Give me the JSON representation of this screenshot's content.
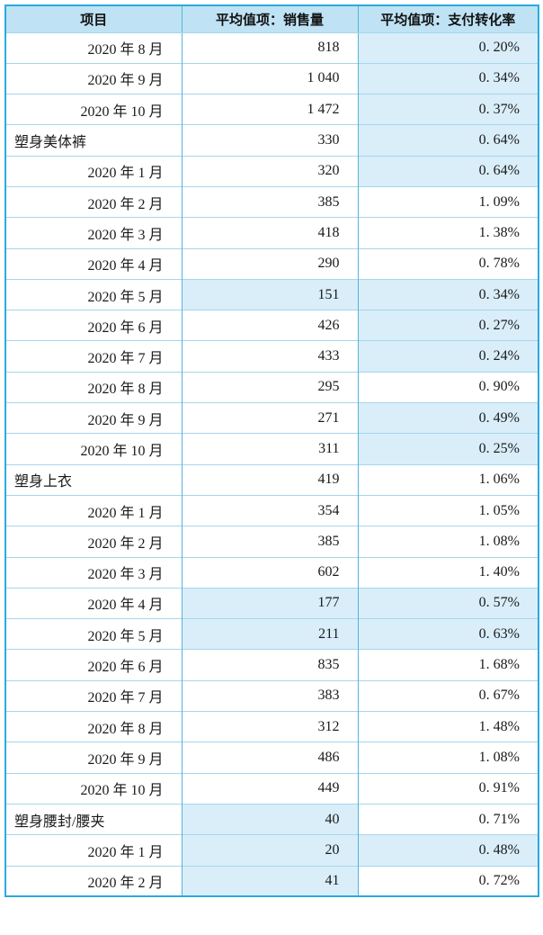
{
  "table": {
    "columns": [
      {
        "label": "项目"
      },
      {
        "label": "平均值项：销售量"
      },
      {
        "label": "平均值项：支付转化率"
      }
    ],
    "rows": [
      {
        "type": "month",
        "label": "2020 年 8 月",
        "sales": "818",
        "conversion": "0. 20%",
        "sales_highlight": false,
        "conversion_highlight": true
      },
      {
        "type": "month",
        "label": "2020 年 9 月",
        "sales": "1 040",
        "conversion": "0. 34%",
        "sales_highlight": false,
        "conversion_highlight": true
      },
      {
        "type": "month",
        "label": "2020 年 10 月",
        "sales": "1 472",
        "conversion": "0. 37%",
        "sales_highlight": false,
        "conversion_highlight": true
      },
      {
        "type": "group",
        "label": "塑身美体裤",
        "sales": "330",
        "conversion": "0. 64%",
        "sales_highlight": false,
        "conversion_highlight": true
      },
      {
        "type": "month",
        "label": "2020 年 1 月",
        "sales": "320",
        "conversion": "0. 64%",
        "sales_highlight": false,
        "conversion_highlight": true
      },
      {
        "type": "month",
        "label": "2020 年 2 月",
        "sales": "385",
        "conversion": "1. 09%",
        "sales_highlight": false,
        "conversion_highlight": false
      },
      {
        "type": "month",
        "label": "2020 年 3 月",
        "sales": "418",
        "conversion": "1. 38%",
        "sales_highlight": false,
        "conversion_highlight": false
      },
      {
        "type": "month",
        "label": "2020 年 4 月",
        "sales": "290",
        "conversion": "0. 78%",
        "sales_highlight": false,
        "conversion_highlight": false
      },
      {
        "type": "month",
        "label": "2020 年 5 月",
        "sales": "151",
        "conversion": "0. 34%",
        "sales_highlight": true,
        "conversion_highlight": true
      },
      {
        "type": "month",
        "label": "2020 年 6 月",
        "sales": "426",
        "conversion": "0. 27%",
        "sales_highlight": false,
        "conversion_highlight": true
      },
      {
        "type": "month",
        "label": "2020 年 7 月",
        "sales": "433",
        "conversion": "0. 24%",
        "sales_highlight": false,
        "conversion_highlight": true
      },
      {
        "type": "month",
        "label": "2020 年 8 月",
        "sales": "295",
        "conversion": "0. 90%",
        "sales_highlight": false,
        "conversion_highlight": false
      },
      {
        "type": "month",
        "label": "2020 年 9 月",
        "sales": "271",
        "conversion": "0. 49%",
        "sales_highlight": false,
        "conversion_highlight": true
      },
      {
        "type": "month",
        "label": "2020 年 10 月",
        "sales": "311",
        "conversion": "0. 25%",
        "sales_highlight": false,
        "conversion_highlight": true
      },
      {
        "type": "group",
        "label": "塑身上衣",
        "sales": "419",
        "conversion": "1. 06%",
        "sales_highlight": false,
        "conversion_highlight": false
      },
      {
        "type": "month",
        "label": "2020 年 1 月",
        "sales": "354",
        "conversion": "1. 05%",
        "sales_highlight": false,
        "conversion_highlight": false
      },
      {
        "type": "month",
        "label": "2020 年 2 月",
        "sales": "385",
        "conversion": "1. 08%",
        "sales_highlight": false,
        "conversion_highlight": false
      },
      {
        "type": "month",
        "label": "2020 年 3 月",
        "sales": "602",
        "conversion": "1. 40%",
        "sales_highlight": false,
        "conversion_highlight": false
      },
      {
        "type": "month",
        "label": "2020 年 4 月",
        "sales": "177",
        "conversion": "0. 57%",
        "sales_highlight": true,
        "conversion_highlight": true
      },
      {
        "type": "month",
        "label": "2020 年 5 月",
        "sales": "211",
        "conversion": "0. 63%",
        "sales_highlight": true,
        "conversion_highlight": true
      },
      {
        "type": "month",
        "label": "2020 年 6 月",
        "sales": "835",
        "conversion": "1. 68%",
        "sales_highlight": false,
        "conversion_highlight": false
      },
      {
        "type": "month",
        "label": "2020 年 7 月",
        "sales": "383",
        "conversion": "0. 67%",
        "sales_highlight": false,
        "conversion_highlight": false
      },
      {
        "type": "month",
        "label": "2020 年 8 月",
        "sales": "312",
        "conversion": "1. 48%",
        "sales_highlight": false,
        "conversion_highlight": false
      },
      {
        "type": "month",
        "label": "2020 年 9 月",
        "sales": "486",
        "conversion": "1. 08%",
        "sales_highlight": false,
        "conversion_highlight": false
      },
      {
        "type": "month",
        "label": "2020 年 10 月",
        "sales": "449",
        "conversion": "0. 91%",
        "sales_highlight": false,
        "conversion_highlight": false
      },
      {
        "type": "group",
        "label": "塑身腰封/腰夹",
        "sales": "40",
        "conversion": "0. 71%",
        "sales_highlight": true,
        "conversion_highlight": false
      },
      {
        "type": "month",
        "label": "2020 年 1 月",
        "sales": "20",
        "conversion": "0. 48%",
        "sales_highlight": true,
        "conversion_highlight": true
      },
      {
        "type": "month",
        "label": "2020 年 2 月",
        "sales": "41",
        "conversion": "0. 72%",
        "sales_highlight": true,
        "conversion_highlight": false
      }
    ]
  },
  "colors": {
    "header_bg": "#bfe3f4",
    "highlight_bg": "#d9eef9",
    "outer_border": "#2baade",
    "column_border": "#54b4dc",
    "row_border": "#a5d6eb",
    "text": "#1a1a1a"
  }
}
